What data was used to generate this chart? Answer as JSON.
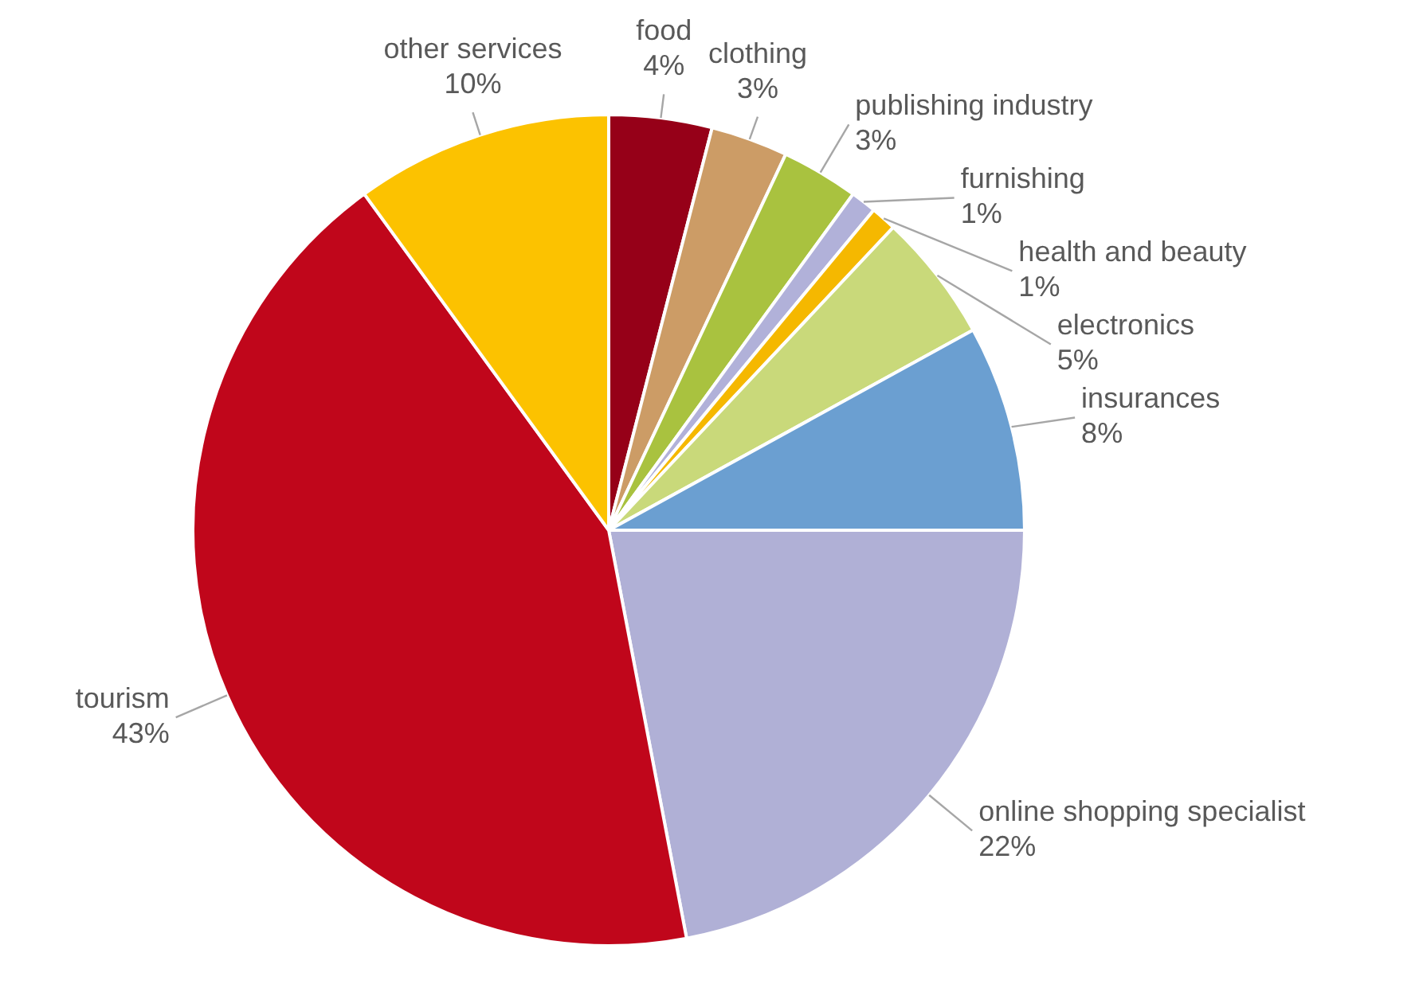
{
  "chart_data": {
    "type": "pie",
    "categories": [
      "food",
      "clothing",
      "publishing industry",
      "furnishing",
      "health and beauty",
      "electronics",
      "insurances",
      "online shopping specialist",
      "tourism",
      "other services"
    ],
    "values": [
      4,
      3,
      3,
      1,
      1,
      5,
      8,
      22,
      43,
      10
    ],
    "value_labels": [
      "4%",
      "3%",
      "3%",
      "1%",
      "1%",
      "5%",
      "8%",
      "22%",
      "43%",
      "10%"
    ],
    "colors": [
      "#960018",
      "#cc9c66",
      "#a9c23f",
      "#b1b1d9",
      "#f5b800",
      "#c9d97a",
      "#6b9fd1",
      "#b0b0d6",
      "#c0061b",
      "#fcc200"
    ],
    "legend": false
  }
}
